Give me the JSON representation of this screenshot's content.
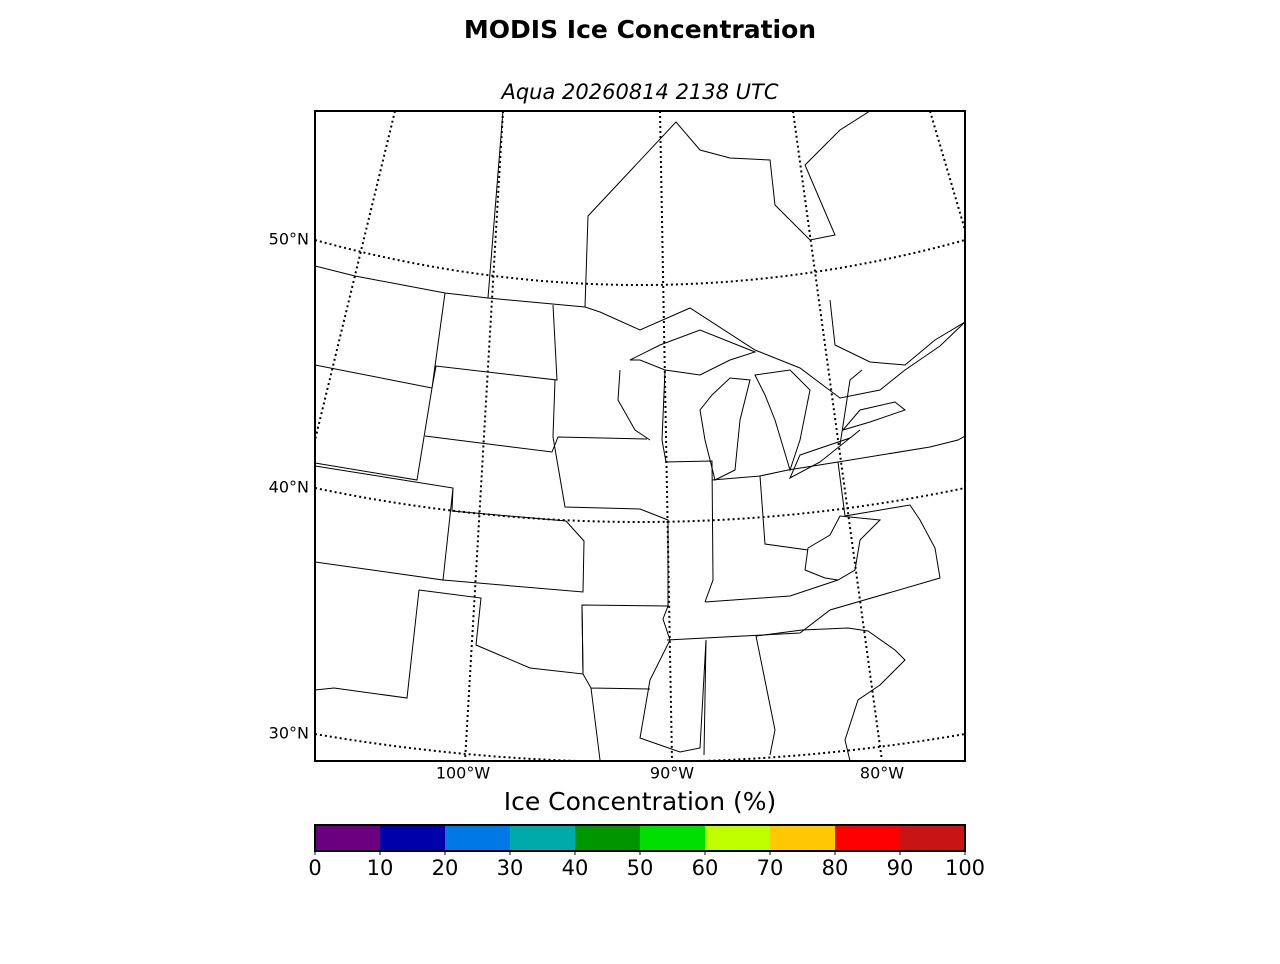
{
  "title": "MODIS Ice Concentration",
  "subtitle": "Aqua 20260814 2138 UTC",
  "map": {
    "lat_labels": [
      "50°N",
      "40°N",
      "30°N"
    ],
    "lon_labels": [
      "100°W",
      "90°W",
      "80°W"
    ]
  },
  "colorbar": {
    "label": "Ice Concentration (%)",
    "range": [
      0,
      100
    ],
    "ticks": [
      0,
      10,
      20,
      30,
      40,
      50,
      60,
      70,
      80,
      90,
      100
    ],
    "colors": [
      "#6a0080",
      "#0000aa",
      "#0078e6",
      "#00aaaa",
      "#009600",
      "#00e000",
      "#bfff00",
      "#ffc800",
      "#ff0000",
      "#c81414"
    ]
  }
}
